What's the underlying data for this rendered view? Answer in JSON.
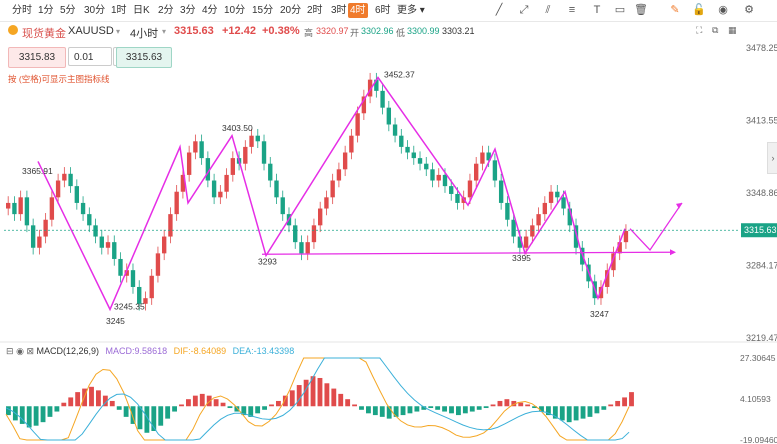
{
  "toolbar": {
    "timeframes": [
      "分时",
      "1分",
      "5分",
      "30分",
      "1时",
      "日K",
      "2分",
      "3分",
      "4分",
      "10分",
      "15分",
      "20分",
      "2时",
      "3时",
      "4时",
      "6时",
      "更多"
    ],
    "active_timeframe": "4时",
    "tools": [
      "draw-line-icon",
      "ray-icon",
      "channel-icon",
      "fib-icon",
      "text-icon",
      "rect-icon",
      "trash-icon",
      "edit-icon",
      "lock-icon",
      "eye-icon",
      "settings-icon"
    ]
  },
  "quote": {
    "name": "现货黄金",
    "symbol": "XAUUSD",
    "period": "4小时",
    "last": "3315.63",
    "change": "+12.42",
    "change_pct": "+0.38%",
    "high_label": "高",
    "high": "3320.97",
    "open_label": "开",
    "open": "3302.96",
    "low_label": "低",
    "low": "3300.99",
    "close": "3303.21"
  },
  "order": {
    "sell": "3315.83",
    "step": "0.01",
    "buy": "3315.63"
  },
  "hint": "按 (空格)可显示主图指标线",
  "macd_header": {
    "label": "MACD(12,26,9)",
    "macd": "MACD:9.58618",
    "dif": "DIF:-8.64089",
    "dea": "DEA:-13.43398"
  },
  "colors": {
    "up": "#e04b4b",
    "down": "#1aa386",
    "orange": "#f5a623",
    "blue": "#3bb0d9",
    "magenta": "#e62ee6",
    "accent": "#f07b2c"
  },
  "chart_data": {
    "type": "candlestick",
    "y_axis": {
      "min": 3219.47,
      "max": 3478.25,
      "ticks": [
        "3478.25",
        "3413.55",
        "3348.86",
        "3284.17",
        "3219.47"
      ]
    },
    "current_price_label": "3315.63",
    "annotations": [
      {
        "label": "3365.91",
        "x": 0.07,
        "y": 3366
      },
      {
        "label": "3403.50",
        "x": 0.36,
        "y": 3404
      },
      {
        "label": "3452.37",
        "x": 0.6,
        "y": 3452
      },
      {
        "label": "3245.35",
        "x": 0.18,
        "y": 3245
      },
      {
        "label": "3245",
        "x": 0.14,
        "y": 3232
      },
      {
        "label": "3293",
        "x": 0.47,
        "y": 3285
      },
      {
        "label": "3395",
        "x": 0.71,
        "y": 3288
      },
      {
        "label": "3247",
        "x": 0.81,
        "y": 3238
      }
    ],
    "zigzag_path": [
      3377,
      3245,
      3390,
      3340,
      3400,
      3293,
      3452,
      3338,
      3388,
      3295,
      3350,
      3300,
      3255,
      3317
    ],
    "projection": [
      3317,
      3298,
      3340
    ],
    "horizontal_line": 3296,
    "candles": [
      3340,
      3330,
      3345,
      3320,
      3300,
      3310,
      3325,
      3345,
      3360,
      3366,
      3355,
      3340,
      3330,
      3320,
      3310,
      3300,
      3305,
      3290,
      3275,
      3280,
      3265,
      3250,
      3255,
      3275,
      3295,
      3310,
      3330,
      3350,
      3365,
      3385,
      3395,
      3380,
      3360,
      3345,
      3350,
      3365,
      3380,
      3375,
      3390,
      3400,
      3395,
      3375,
      3360,
      3345,
      3330,
      3320,
      3305,
      3295,
      3305,
      3320,
      3335,
      3345,
      3360,
      3370,
      3385,
      3400,
      3420,
      3435,
      3450,
      3440,
      3425,
      3410,
      3400,
      3390,
      3385,
      3380,
      3375,
      3370,
      3360,
      3365,
      3355,
      3348,
      3340,
      3345,
      3360,
      3375,
      3385,
      3378,
      3360,
      3340,
      3325,
      3310,
      3300,
      3310,
      3320,
      3330,
      3340,
      3350,
      3345,
      3335,
      3320,
      3300,
      3285,
      3270,
      3255,
      3265,
      3280,
      3295,
      3305,
      3315
    ],
    "macd": {
      "axis_ticks": [
        "27.30645",
        "4.10593",
        "-19.09460"
      ],
      "histogram": [
        -5,
        -8,
        -10,
        -12,
        -11,
        -9,
        -6,
        -3,
        2,
        5,
        8,
        10,
        11,
        9,
        6,
        3,
        -2,
        -6,
        -10,
        -13,
        -15,
        -14,
        -11,
        -7,
        -3,
        1,
        4,
        6,
        7,
        6,
        4,
        2,
        -1,
        -3,
        -5,
        -6,
        -4,
        -2,
        1,
        3,
        6,
        9,
        12,
        15,
        17,
        16,
        13,
        10,
        7,
        4,
        1,
        -2,
        -4,
        -5,
        -6,
        -7,
        -6,
        -5,
        -4,
        -3,
        -2,
        -1,
        -2,
        -3,
        -4,
        -5,
        -4,
        -3,
        -2,
        -1,
        1,
        3,
        4,
        3,
        2,
        1,
        -1,
        -3,
        -5,
        -7,
        -8,
        -9,
        -8,
        -7,
        -6,
        -4,
        -2,
        1,
        3,
        5,
        8
      ]
    }
  }
}
